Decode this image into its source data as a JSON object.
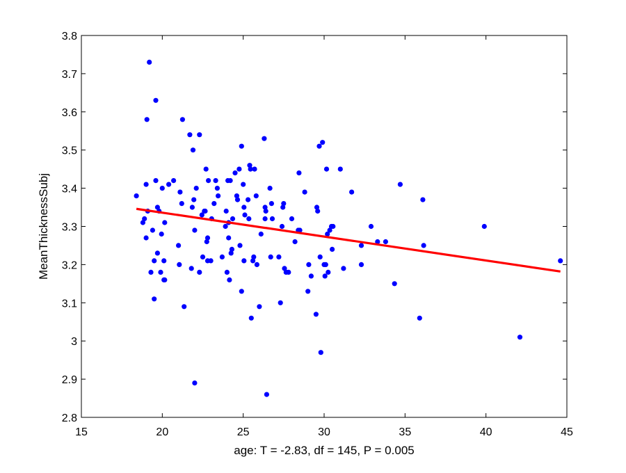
{
  "chart_data": {
    "type": "scatter",
    "title": "",
    "xlabel": "age: T = -2.83, df = 145, P = 0.005",
    "ylabel": "MeanThicknessSubj",
    "xlim": [
      15,
      45
    ],
    "ylim": [
      2.8,
      3.8
    ],
    "xticks": [
      15,
      20,
      25,
      30,
      35,
      40,
      45
    ],
    "yticks": [
      2.8,
      2.9,
      3.0,
      3.1,
      3.2,
      3.3,
      3.4,
      3.5,
      3.6,
      3.7,
      3.8
    ],
    "xtick_labels": [
      "15",
      "20",
      "25",
      "30",
      "35",
      "40",
      "45"
    ],
    "ytick_labels": [
      "2.8",
      "2.9",
      "3",
      "3.1",
      "3.2",
      "3.3",
      "3.4",
      "3.5",
      "3.6",
      "3.7",
      "3.8"
    ],
    "grid": false,
    "legend": null,
    "point_color": "#0000ff",
    "fit_color": "#ff0000",
    "points": [
      [
        18.4,
        3.38
      ],
      [
        18.8,
        3.31
      ],
      [
        18.9,
        3.32
      ],
      [
        19.0,
        3.41
      ],
      [
        19.0,
        3.27
      ],
      [
        19.1,
        3.34
      ],
      [
        19.05,
        3.58
      ],
      [
        19.2,
        3.73
      ],
      [
        19.3,
        3.18
      ],
      [
        19.4,
        3.29
      ],
      [
        19.5,
        3.11
      ],
      [
        19.5,
        3.21
      ],
      [
        19.6,
        3.42
      ],
      [
        19.6,
        3.63
      ],
      [
        19.7,
        3.35
      ],
      [
        19.7,
        3.23
      ],
      [
        19.8,
        3.34
      ],
      [
        19.9,
        3.18
      ],
      [
        19.95,
        3.28
      ],
      [
        20.0,
        3.4
      ],
      [
        20.1,
        3.16
      ],
      [
        20.1,
        3.21
      ],
      [
        20.15,
        3.16
      ],
      [
        20.15,
        3.31
      ],
      [
        20.4,
        3.41
      ],
      [
        20.7,
        3.42
      ],
      [
        21.0,
        3.25
      ],
      [
        21.05,
        3.2
      ],
      [
        21.1,
        3.39
      ],
      [
        21.2,
        3.36
      ],
      [
        21.25,
        3.58
      ],
      [
        21.35,
        3.09
      ],
      [
        21.7,
        3.54
      ],
      [
        21.8,
        3.19
      ],
      [
        21.85,
        3.35
      ],
      [
        21.9,
        3.5
      ],
      [
        21.95,
        3.37
      ],
      [
        22.0,
        3.29
      ],
      [
        22.0,
        2.89
      ],
      [
        22.1,
        3.4
      ],
      [
        22.3,
        3.54
      ],
      [
        22.3,
        3.18
      ],
      [
        22.45,
        3.33
      ],
      [
        22.5,
        3.22
      ],
      [
        22.6,
        3.34
      ],
      [
        22.65,
        3.34
      ],
      [
        22.7,
        3.45
      ],
      [
        22.75,
        3.26
      ],
      [
        22.8,
        3.27
      ],
      [
        22.8,
        3.21
      ],
      [
        22.85,
        3.42
      ],
      [
        23.0,
        3.21
      ],
      [
        23.05,
        3.32
      ],
      [
        23.2,
        3.36
      ],
      [
        23.3,
        3.42
      ],
      [
        23.4,
        3.4
      ],
      [
        23.45,
        3.38
      ],
      [
        23.7,
        3.22
      ],
      [
        23.9,
        3.3
      ],
      [
        23.95,
        3.34
      ],
      [
        24.0,
        3.18
      ],
      [
        24.05,
        3.42
      ],
      [
        24.1,
        3.31
      ],
      [
        24.1,
        3.27
      ],
      [
        24.15,
        3.16
      ],
      [
        24.2,
        3.42
      ],
      [
        24.25,
        3.23
      ],
      [
        24.3,
        3.24
      ],
      [
        24.35,
        3.32
      ],
      [
        24.5,
        3.44
      ],
      [
        24.6,
        3.38
      ],
      [
        24.65,
        3.37
      ],
      [
        24.75,
        3.45
      ],
      [
        24.8,
        3.25
      ],
      [
        24.9,
        3.13
      ],
      [
        24.9,
        3.51
      ],
      [
        25.0,
        3.41
      ],
      [
        25.05,
        3.21
      ],
      [
        25.05,
        3.35
      ],
      [
        25.1,
        3.33
      ],
      [
        25.3,
        3.37
      ],
      [
        25.35,
        3.32
      ],
      [
        25.4,
        3.46
      ],
      [
        25.45,
        3.45
      ],
      [
        25.5,
        3.06
      ],
      [
        25.6,
        3.21
      ],
      [
        25.65,
        3.22
      ],
      [
        25.7,
        3.45
      ],
      [
        25.8,
        3.38
      ],
      [
        25.85,
        3.2
      ],
      [
        26.0,
        3.09
      ],
      [
        26.1,
        3.28
      ],
      [
        26.3,
        3.53
      ],
      [
        26.35,
        3.32
      ],
      [
        26.35,
        3.35
      ],
      [
        26.4,
        3.34
      ],
      [
        26.45,
        2.86
      ],
      [
        26.65,
        3.4
      ],
      [
        26.7,
        3.22
      ],
      [
        26.75,
        3.36
      ],
      [
        26.8,
        3.32
      ],
      [
        27.2,
        3.22
      ],
      [
        27.3,
        3.1
      ],
      [
        27.4,
        3.3
      ],
      [
        27.45,
        3.35
      ],
      [
        27.5,
        3.36
      ],
      [
        27.55,
        3.19
      ],
      [
        27.65,
        3.18
      ],
      [
        27.8,
        3.18
      ],
      [
        28.0,
        3.32
      ],
      [
        28.2,
        3.26
      ],
      [
        28.4,
        3.29
      ],
      [
        28.45,
        3.44
      ],
      [
        28.5,
        3.29
      ],
      [
        28.8,
        3.39
      ],
      [
        29.0,
        3.13
      ],
      [
        29.05,
        3.2
      ],
      [
        29.2,
        3.17
      ],
      [
        29.5,
        3.07
      ],
      [
        29.55,
        3.35
      ],
      [
        29.6,
        3.34
      ],
      [
        29.7,
        3.51
      ],
      [
        29.75,
        3.22
      ],
      [
        29.8,
        2.97
      ],
      [
        29.9,
        3.52
      ],
      [
        30.0,
        3.2
      ],
      [
        30.05,
        3.17
      ],
      [
        30.1,
        3.2
      ],
      [
        30.15,
        3.45
      ],
      [
        30.2,
        3.28
      ],
      [
        30.25,
        3.18
      ],
      [
        30.35,
        3.29
      ],
      [
        30.45,
        3.3
      ],
      [
        30.5,
        3.24
      ],
      [
        30.55,
        3.3
      ],
      [
        31.0,
        3.45
      ],
      [
        31.2,
        3.19
      ],
      [
        31.7,
        3.39
      ],
      [
        32.3,
        3.25
      ],
      [
        32.3,
        3.2
      ],
      [
        32.9,
        3.3
      ],
      [
        33.3,
        3.26
      ],
      [
        33.8,
        3.26
      ],
      [
        34.35,
        3.15
      ],
      [
        34.7,
        3.41
      ],
      [
        35.9,
        3.06
      ],
      [
        36.1,
        3.37
      ],
      [
        36.15,
        3.25
      ],
      [
        39.9,
        3.3
      ],
      [
        42.1,
        3.01
      ],
      [
        44.6,
        3.21
      ]
    ],
    "fit_line": [
      [
        18.4,
        3.346
      ],
      [
        44.6,
        3.182
      ]
    ]
  }
}
